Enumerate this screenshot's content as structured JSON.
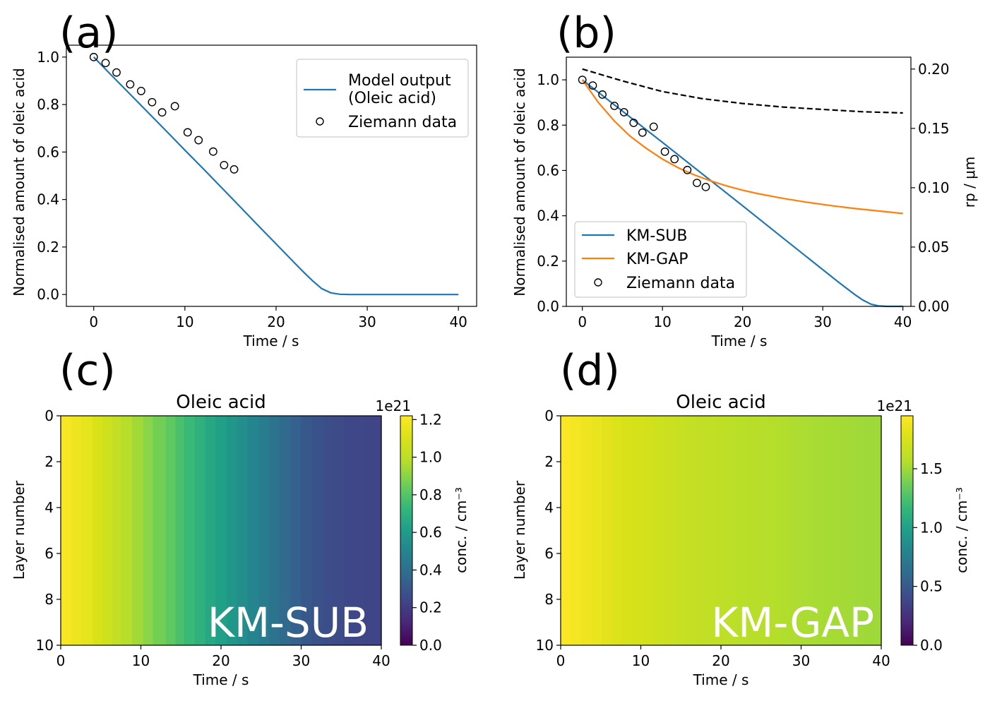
{
  "figure": {
    "panel_labels": [
      "(a)",
      "(b)",
      "(c)",
      "(d)"
    ]
  },
  "chart_data": [
    {
      "panel": "(a)",
      "type": "line",
      "title": "",
      "xlabel": "Time / s",
      "ylabel": "Normalised amount of oleic acid",
      "xlim": [
        -3,
        42
      ],
      "ylim": [
        -0.05,
        1.05
      ],
      "xticks": [
        0,
        10,
        20,
        30,
        40
      ],
      "yticks": [
        0.0,
        0.2,
        0.4,
        0.6,
        0.8,
        1.0
      ],
      "xtick_labels": [
        "0",
        "10",
        "20",
        "30",
        "40"
      ],
      "ytick_labels": [
        "0.0",
        "0.2",
        "0.4",
        "0.6",
        "0.8",
        "1.0"
      ],
      "legend_position": "top-right",
      "series": [
        {
          "name": "Model output (Oleic acid)",
          "legend_lines": [
            "Model output",
            "(Oleic acid)"
          ],
          "style": "line",
          "color": "#1f77b4",
          "x": [
            0,
            2,
            4,
            6,
            8,
            10,
            12,
            14,
            16,
            18,
            20,
            22,
            23,
            24,
            25,
            26,
            27,
            28,
            30,
            35,
            40
          ],
          "y": [
            1.0,
            0.921,
            0.843,
            0.765,
            0.687,
            0.608,
            0.53,
            0.451,
            0.372,
            0.292,
            0.213,
            0.134,
            0.095,
            0.058,
            0.025,
            0.007,
            0.001,
            0.0,
            0.0,
            0.0,
            0.0
          ]
        },
        {
          "name": "Ziemann data",
          "style": "open-circle",
          "color": "#000000",
          "x": [
            0,
            1.3,
            2.5,
            4,
            5.2,
            6.4,
            7.5,
            8.9,
            10.3,
            11.5,
            13.1,
            14.3,
            15.4
          ],
          "y": [
            1.0,
            0.975,
            0.935,
            0.885,
            0.857,
            0.81,
            0.767,
            0.793,
            0.683,
            0.65,
            0.602,
            0.545,
            0.527
          ]
        }
      ]
    },
    {
      "panel": "(b)",
      "type": "line",
      "title": "",
      "xlabel": "Time / s",
      "ylabel": "Normalised amount of oleic acid",
      "y2label": "rp / μm",
      "xlim": [
        -2,
        41
      ],
      "ylim": [
        0.0,
        1.1
      ],
      "y2lim": [
        0.0,
        0.21
      ],
      "xticks": [
        0,
        10,
        20,
        30,
        40
      ],
      "yticks": [
        0.0,
        0.2,
        0.4,
        0.6,
        0.8,
        1.0
      ],
      "y2ticks": [
        0.0,
        0.05,
        0.1,
        0.15,
        0.2
      ],
      "xtick_labels": [
        "0",
        "10",
        "20",
        "30",
        "40"
      ],
      "ytick_labels": [
        "0.0",
        "0.2",
        "0.4",
        "0.6",
        "0.8",
        "1.0"
      ],
      "y2tick_labels": [
        "0.00",
        "0.05",
        "0.10",
        "0.15",
        "0.20"
      ],
      "legend_position": "bottom-left",
      "series": [
        {
          "name": "KM-SUB",
          "style": "line",
          "color": "#1f77b4",
          "x": [
            0,
            5,
            10,
            15,
            20,
            25,
            30,
            32,
            34,
            35,
            36,
            37,
            38,
            40
          ],
          "y": [
            1.0,
            0.862,
            0.724,
            0.584,
            0.444,
            0.303,
            0.162,
            0.106,
            0.052,
            0.028,
            0.01,
            0.002,
            0.0,
            0.0
          ]
        },
        {
          "name": "KM-GAP",
          "style": "line",
          "color": "#ff7f0e",
          "x": [
            0,
            2,
            4,
            6,
            8,
            10,
            12,
            14,
            16,
            18,
            20,
            22,
            25,
            28,
            31,
            34,
            37,
            40
          ],
          "y": [
            1.0,
            0.9,
            0.818,
            0.75,
            0.697,
            0.65,
            0.611,
            0.58,
            0.554,
            0.532,
            0.513,
            0.497,
            0.477,
            0.46,
            0.445,
            0.432,
            0.421,
            0.41
          ]
        },
        {
          "name": "Ziemann data",
          "style": "open-circle",
          "color": "#000000",
          "x": [
            0,
            1.3,
            2.5,
            4,
            5.2,
            6.4,
            7.5,
            8.9,
            10.3,
            11.5,
            13.1,
            14.3,
            15.4
          ],
          "y": [
            1.0,
            0.975,
            0.935,
            0.885,
            0.857,
            0.81,
            0.767,
            0.793,
            0.683,
            0.65,
            0.602,
            0.545,
            0.527
          ]
        },
        {
          "name": "rp",
          "axis": "right",
          "style": "dashed",
          "color": "#000000",
          "x": [
            0,
            5,
            10,
            15,
            20,
            25,
            30,
            35,
            40
          ],
          "y": [
            0.2,
            0.19,
            0.181,
            0.175,
            0.171,
            0.168,
            0.166,
            0.164,
            0.163
          ]
        }
      ]
    },
    {
      "panel": "(c)",
      "type": "heatmap",
      "title": "Oleic acid",
      "xlabel": "Time / s",
      "ylabel": "Layer number",
      "colorbar_label": "conc. / cm⁻³",
      "colorbar_offset": "1e21",
      "overlay_text": "KM-SUB",
      "xlim": [
        0,
        40
      ],
      "ylim": [
        10,
        0
      ],
      "xticks": [
        0,
        10,
        20,
        30,
        40
      ],
      "yticks": [
        0,
        2,
        4,
        6,
        8,
        10
      ],
      "xtick_labels": [
        "0",
        "10",
        "20",
        "30",
        "40"
      ],
      "ytick_labels": [
        "0",
        "2",
        "4",
        "6",
        "8",
        "10"
      ],
      "clim": [
        0.0,
        1.22
      ],
      "cticks": [
        0.0,
        0.2,
        0.4,
        0.6,
        0.8,
        1.0,
        1.2
      ],
      "ctick_labels": [
        "0.0",
        "0.2",
        "0.4",
        "0.6",
        "0.8",
        "1.0",
        "1.2"
      ],
      "time": [
        0,
        1.3,
        2.5,
        4,
        5.2,
        6.4,
        7.5,
        8.9,
        10.3,
        11.5,
        13.1,
        14.3,
        15.4,
        16.7,
        18.0,
        19.3,
        20.7,
        22.0,
        23.3,
        24.7,
        26.0,
        27.3,
        28.7,
        30.0,
        31.3,
        32.7,
        34.0,
        35.3,
        36.7,
        38.0,
        40
      ],
      "values": [
        1.2,
        1.17,
        1.14,
        1.1,
        1.06,
        1.02,
        0.98,
        0.94,
        0.9,
        0.86,
        0.82,
        0.78,
        0.74,
        0.7,
        0.66,
        0.62,
        0.58,
        0.54,
        0.5,
        0.46,
        0.42,
        0.38,
        0.34,
        0.3,
        0.28,
        0.26,
        0.25,
        0.24,
        0.235,
        0.23,
        0.23
      ]
    },
    {
      "panel": "(d)",
      "type": "heatmap",
      "title": "Oleic acid",
      "xlabel": "Time / s",
      "ylabel": "Layer number",
      "colorbar_label": "conc. / cm⁻³",
      "colorbar_offset": "1e21",
      "overlay_text": "KM-GAP",
      "xlim": [
        0,
        40
      ],
      "ylim": [
        10,
        0
      ],
      "xticks": [
        0,
        10,
        20,
        30,
        40
      ],
      "yticks": [
        0,
        2,
        4,
        6,
        8,
        10
      ],
      "xtick_labels": [
        "0",
        "10",
        "20",
        "30",
        "40"
      ],
      "ytick_labels": [
        "0",
        "2",
        "4",
        "6",
        "8",
        "10"
      ],
      "clim": [
        0.0,
        1.95
      ],
      "cticks": [
        0.0,
        0.5,
        1.0,
        1.5
      ],
      "ctick_labels": [
        "0.0",
        "0.5",
        "1.0",
        "1.5"
      ],
      "time": [
        0,
        1.3,
        2.5,
        4,
        5.2,
        6.4,
        7.5,
        8.9,
        10.3,
        11.5,
        13.1,
        14.3,
        15.4,
        16.7,
        18.0,
        19.3,
        20.7,
        22.0,
        23.3,
        24.7,
        26.0,
        27.3,
        28.7,
        30.0,
        31.3,
        32.7,
        34.0,
        35.3,
        36.7,
        38.0,
        40
      ],
      "values": [
        1.93,
        1.9,
        1.87,
        1.84,
        1.81,
        1.78,
        1.76,
        1.74,
        1.72,
        1.7,
        1.68,
        1.66,
        1.64,
        1.63,
        1.62,
        1.61,
        1.6,
        1.59,
        1.58,
        1.57,
        1.56,
        1.55,
        1.54,
        1.53,
        1.525,
        1.52,
        1.515,
        1.51,
        1.505,
        1.5,
        1.5
      ]
    }
  ]
}
